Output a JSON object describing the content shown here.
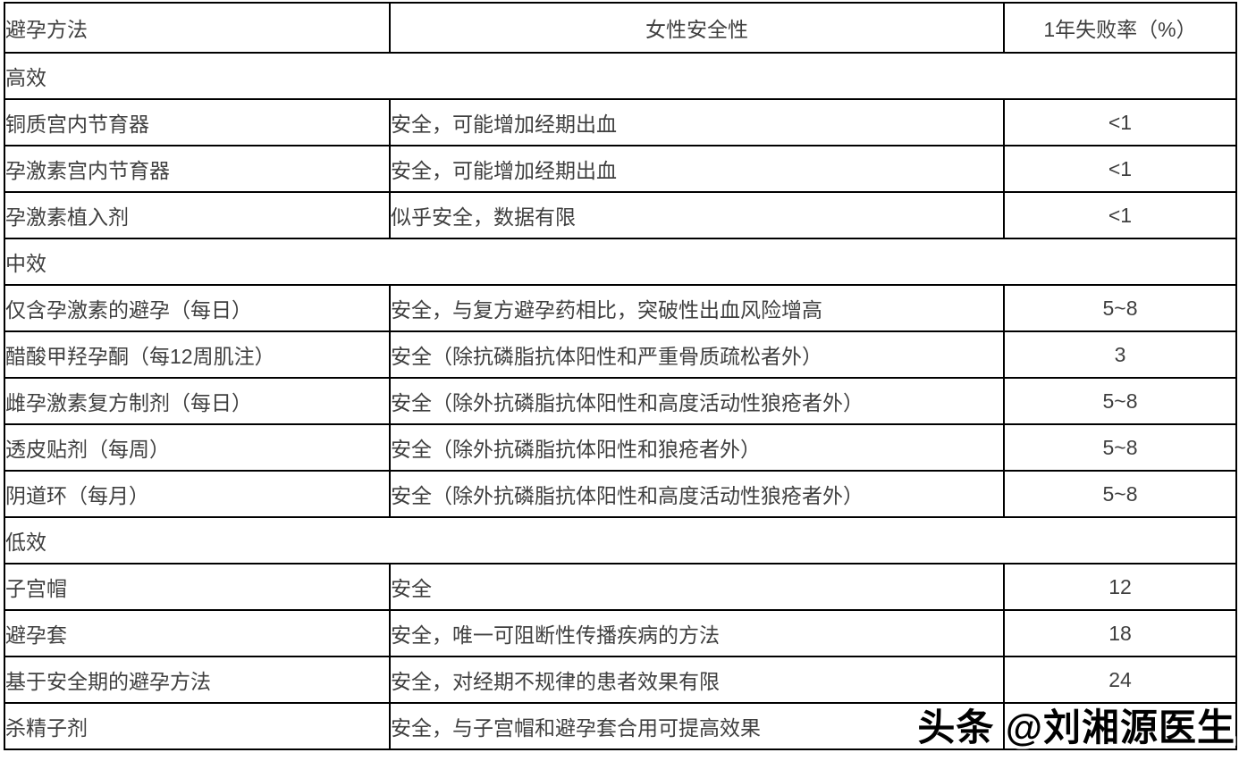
{
  "table": {
    "columns": [
      "避孕方法",
      "女性安全性",
      "1年失败率（%）"
    ],
    "sections": [
      {
        "label": "高效",
        "rows": [
          {
            "method": "铜质宫内节育器",
            "safety": "安全，可能增加经期出血",
            "rate": "<1"
          },
          {
            "method": "孕激素宫内节育器",
            "safety": "安全，可能增加经期出血",
            "rate": "<1"
          },
          {
            "method": "孕激素植入剂",
            "safety": "似乎安全，数据有限",
            "rate": "<1"
          }
        ]
      },
      {
        "label": "中效",
        "rows": [
          {
            "method": "仅含孕激素的避孕（每日）",
            "safety": "安全，与复方避孕药相比，突破性出血风险增高",
            "rate": "5~8"
          },
          {
            "method": "醋酸甲羟孕酮（每12周肌注）",
            "safety": "安全（除抗磷脂抗体阳性和严重骨质疏松者外）",
            "rate": "3"
          },
          {
            "method": "雌孕激素复方制剂（每日）",
            "safety": "安全（除外抗磷脂抗体阳性和高度活动性狼疮者外）",
            "rate": "5~8"
          },
          {
            "method": "透皮贴剂（每周）",
            "safety": "安全（除外抗磷脂抗体阳性和狼疮者外）",
            "rate": "5~8"
          },
          {
            "method": "阴道环（每月）",
            "safety": "安全（除外抗磷脂抗体阳性和高度活动性狼疮者外）",
            "rate": "5~8"
          }
        ]
      },
      {
        "label": "低效",
        "rows": [
          {
            "method": "子宫帽",
            "safety": "安全",
            "rate": "12"
          },
          {
            "method": "避孕套",
            "safety": "安全，唯一可阻断性传播疾病的方法",
            "rate": "18"
          },
          {
            "method": "基于安全期的避孕方法",
            "safety": "安全，对经期不规律的患者效果有限",
            "rate": "24"
          },
          {
            "method": "杀精子剂",
            "safety": "安全，与子宫帽和避孕套合用可提高效果",
            "rate": ""
          }
        ]
      }
    ]
  },
  "watermark": {
    "text": "头条 @刘湘源医生"
  },
  "colors": {
    "border": "#000000",
    "text": "#3f3f3f",
    "background": "#ffffff",
    "watermark_fill": "#000000",
    "watermark_outline": "#ffffff"
  }
}
